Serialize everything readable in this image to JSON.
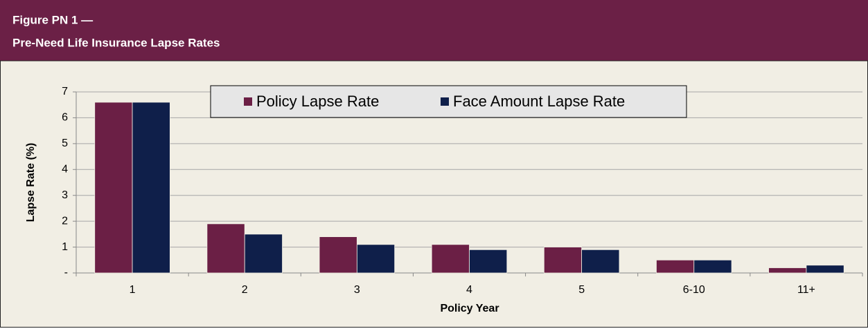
{
  "chart_data": {
    "type": "bar",
    "title": "Figure PN 1 —",
    "subtitle": "Pre-Need Life Insurance Lapse Rates",
    "x_label": "Policy Year",
    "y_label": "Lapse Rate (%)",
    "categories": [
      "1",
      "2",
      "3",
      "4",
      "5",
      "6-10",
      "11+"
    ],
    "series": [
      {
        "name": "Policy Lapse Rate",
        "color": "#6b1f45",
        "values": [
          6.6,
          1.9,
          1.4,
          1.1,
          1.0,
          0.5,
          0.2
        ]
      },
      {
        "name": "Face Amount Lapse Rate",
        "color": "#0f1f4a",
        "values": [
          6.6,
          1.5,
          1.1,
          0.9,
          0.9,
          0.5,
          0.3
        ]
      }
    ],
    "ylim": [
      0,
      7
    ],
    "yticks": [
      {
        "value": 0,
        "label": "-"
      },
      1,
      2,
      3,
      4,
      5,
      6,
      7
    ],
    "grid": true,
    "legend": "upper center"
  }
}
